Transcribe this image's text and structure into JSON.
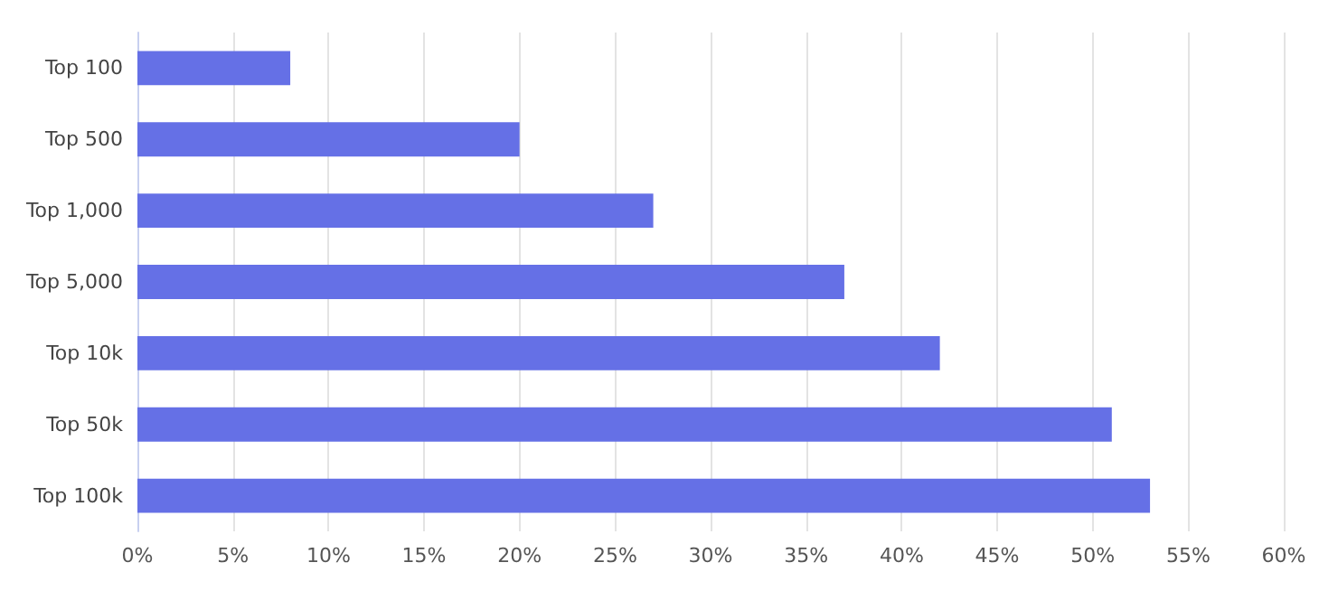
{
  "chart_data": {
    "type": "bar",
    "orientation": "horizontal",
    "categories": [
      "Top 100",
      "Top 500",
      "Top 1,000",
      "Top 5,000",
      "Top 10k",
      "Top 50k",
      "Top 100k"
    ],
    "values": [
      8,
      20,
      27,
      37,
      42,
      51,
      53
    ],
    "color": "#6570e6",
    "xlim": [
      0,
      60
    ],
    "xticks": [
      {
        "value": 0,
        "label": "0%"
      },
      {
        "value": 5,
        "label": "5%"
      },
      {
        "value": 10,
        "label": "10%"
      },
      {
        "value": 15,
        "label": "15%"
      },
      {
        "value": 20,
        "label": "20%"
      },
      {
        "value": 25,
        "label": "25%"
      },
      {
        "value": 30,
        "label": "30%"
      },
      {
        "value": 35,
        "label": "35%"
      },
      {
        "value": 40,
        "label": "40%"
      },
      {
        "value": 45,
        "label": "45%"
      },
      {
        "value": 50,
        "label": "50%"
      },
      {
        "value": 55,
        "label": "55%"
      },
      {
        "value": 60,
        "label": "60%"
      }
    ],
    "grid": "x"
  }
}
